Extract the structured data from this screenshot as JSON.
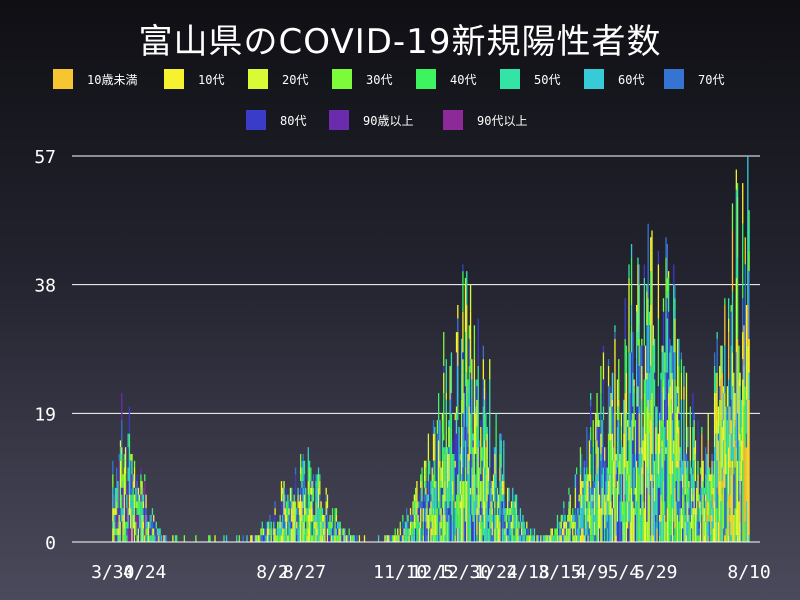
{
  "chart_data": {
    "type": "bar",
    "stacked": true,
    "title": "富山県のCOVID-19新規陽性者数",
    "xlabel": "",
    "ylabel": "",
    "ylim": [
      0,
      57
    ],
    "yticks": [
      "0",
      "19",
      "38",
      "57"
    ],
    "xtick_labels": [
      "3/30",
      "4/24",
      "8/2",
      "8/27",
      "11/10",
      "12/5",
      "12/30",
      "1/24",
      "2/18",
      "3/15",
      "4/9",
      "5/4",
      "5/29",
      "8/10"
    ],
    "grid": true,
    "legend_position": "top",
    "series": [
      {
        "name": "10歳未満",
        "color": "#f7c531"
      },
      {
        "name": "10代",
        "color": "#f7f22f"
      },
      {
        "name": "20代",
        "color": "#d7fc36"
      },
      {
        "name": "30代",
        "color": "#7cfb3a"
      },
      {
        "name": "40代",
        "color": "#3cf45f"
      },
      {
        "name": "50代",
        "color": "#34e3a6"
      },
      {
        "name": "60代",
        "color": "#37cbd7"
      },
      {
        "name": "70代",
        "color": "#3674d4"
      },
      {
        "name": "80代",
        "color": "#3b3bc9"
      },
      {
        "name": "90歳以上",
        "color": "#6a2bad"
      },
      {
        "name": "90代以上",
        "color": "#8c2a97"
      }
    ],
    "peaks": [
      {
        "date": "4/7",
        "value": 20
      },
      {
        "date": "8/26",
        "value": 13
      },
      {
        "date": "12/30",
        "value": 38
      },
      {
        "date": "4/27",
        "value": 29
      },
      {
        "date": "5/26",
        "value": 49
      },
      {
        "date": "8/10",
        "value": 57
      }
    ]
  }
}
